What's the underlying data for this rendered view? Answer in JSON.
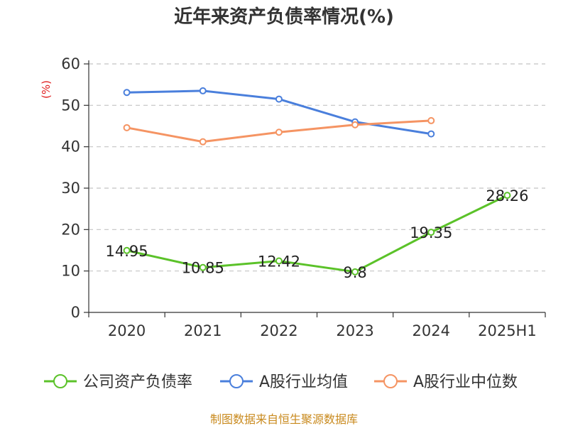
{
  "chart_data": {
    "type": "line",
    "title": "近年来资产负债率情况(%)",
    "y_unit": "(%)",
    "categories": [
      "2020",
      "2021",
      "2022",
      "2023",
      "2024",
      "2025H1"
    ],
    "ylim": [
      0,
      60
    ],
    "y_ticks": [
      0,
      10,
      20,
      30,
      40,
      50,
      60
    ],
    "grid": true,
    "legend_position": "bottom",
    "series": [
      {
        "name": "公司资产负债率",
        "color": "#5bc229",
        "values": [
          14.95,
          10.85,
          12.42,
          9.8,
          19.35,
          28.26
        ],
        "labels": [
          "14.95",
          "10.85",
          "12.42",
          "9.8",
          "19.35",
          "28.26"
        ]
      },
      {
        "name": "A股行业均值",
        "color": "#4a7fdc",
        "values": [
          53.1,
          53.5,
          51.5,
          46.0,
          43.1,
          null
        ]
      },
      {
        "name": "A股行业中位数",
        "color": "#f59463",
        "values": [
          44.6,
          41.2,
          43.5,
          45.3,
          46.3,
          null
        ]
      }
    ]
  },
  "source": "制图数据来自恒生聚源数据库"
}
